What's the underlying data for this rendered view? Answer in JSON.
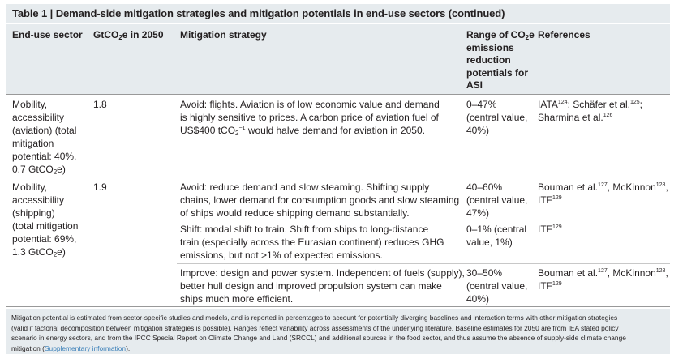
{
  "table": {
    "title": "Table 1 | Demand-side mitigation strategies and mitigation potentials in end-use sectors (continued)",
    "headers": {
      "end_use_sector": "End-use sector",
      "gtco2e_prefix": "GtCO",
      "gtco2e_sub": "2",
      "gtco2e_suffix": "e in 2050",
      "strategy": "Mitigation strategy",
      "range_l1_prefix": "Range of CO",
      "range_l1_sub": "2",
      "range_l1_suffix": "e",
      "range_l2": "emissions",
      "range_l3": "reduction",
      "range_l4": "potentials for",
      "range_l5": "ASI",
      "references": "References"
    },
    "aviation": {
      "sector_l1": "Mobility,",
      "sector_l2": "accessibility",
      "sector_l3": "(aviation) (total",
      "sector_l4": "mitigation",
      "sector_l5": "potential: 40%,",
      "sector_l6_prefix": "0.7 GtCO",
      "sector_l6_sub": "2",
      "sector_l6_suffix": "e)",
      "gt": "1.8",
      "strategy_l1": "Avoid: flights. Aviation is of low economic value and demand",
      "strategy_l2": "is highly sensitive to prices. A carbon price of aviation fuel of",
      "strategy_l3_prefix": "US$400 tCO",
      "strategy_l3_sub": "2",
      "strategy_l3_sup": "−1",
      "strategy_l3_suffix": " would halve demand for aviation in 2050.",
      "range_l1": "0–47%",
      "range_l2": "(central value,",
      "range_l3": "40%)",
      "ref_l1_a": "IATA",
      "ref_l1_a_sup": "124",
      "ref_l1_b": "; Schäfer et al.",
      "ref_l1_b_sup": "125",
      "ref_l1_c": ";",
      "ref_l2_a": "Sharmina et al.",
      "ref_l2_a_sup": "126"
    },
    "shipping": {
      "sector_l1": "Mobility,",
      "sector_l2": "accessibility",
      "sector_l3": "(shipping)",
      "sector_l4": "(total mitigation",
      "sector_l5": "potential: 69%,",
      "sector_l6_prefix": "1.3 GtCO",
      "sector_l6_sub": "2",
      "sector_l6_suffix": "e)",
      "gt": "1.9",
      "rows": [
        {
          "strategy_l1": "Avoid: reduce demand and slow steaming. Shifting supply",
          "strategy_l2": "chains, lower demand for consumption goods and slow steaming",
          "strategy_l3": "of ships would reduce shipping demand substantially.",
          "range_l1": "40–60%",
          "range_l2": "(central value,",
          "range_l3": "47%)",
          "ref_l1_a": "Bouman et al.",
          "ref_l1_a_sup": "127",
          "ref_l1_b": ", McKinnon",
          "ref_l1_b_sup": "128",
          "ref_l1_c": ",",
          "ref_l2_a": "ITF",
          "ref_l2_a_sup": "129"
        },
        {
          "strategy_l1": "Shift: modal shift to train. Shift from ships to long-distance",
          "strategy_l2": "train (especially across the Eurasian continent) reduces GHG",
          "strategy_l3": "emissions, but not >1% of expected emissions.",
          "range_l1": "0–1% (central",
          "range_l2": "value, 1%)",
          "ref_l1_a": "ITF",
          "ref_l1_a_sup": "129"
        },
        {
          "strategy_l1": "Improve: design and power system. Independent of fuels (supply),",
          "strategy_l2": "better hull design and improved propulsion system can make",
          "strategy_l3": "ships much more efficient.",
          "range_l1": "30–50%",
          "range_l2": "(central value,",
          "range_l3": "40%)",
          "ref_l1_a": "Bouman et al.",
          "ref_l1_a_sup": "127",
          "ref_l1_b": ", McKinnon",
          "ref_l1_b_sup": "128",
          "ref_l1_c": ",",
          "ref_l2_a": "ITF",
          "ref_l2_a_sup": "129"
        }
      ]
    },
    "footnote": {
      "l1": "Mitigation potential is estimated from sector-specific studies and models, and is reported in percentages to account for potentially diverging baselines and interaction terms with other mitigation strategies",
      "l2": "(valid if factorial decomposition between mitigation strategies is possible). Ranges reflect variability across assessments of the underlying literature. Baseline estimates for 2050 are from IEA stated policy",
      "l3": "scenario in energy sectors, and from the IPCC Special Report on Climate Change and Land (SRCCL) and additional sources in the food sector, and thus assume the absence of supply-side climate change",
      "l4_prefix": "mitigation (",
      "l4_link": "Supplementary information",
      "l4_suffix": ")."
    }
  }
}
